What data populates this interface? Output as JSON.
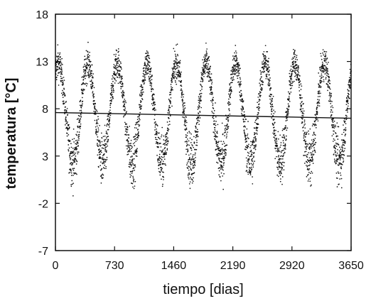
{
  "chart_data": {
    "type": "scatter",
    "title": "",
    "xlabel": "tiempo [dias]",
    "ylabel": "temperatura [°C]",
    "xlim": [
      0,
      3650
    ],
    "ylim": [
      -7,
      18
    ],
    "xticks": [
      0,
      730,
      1460,
      2190,
      2920,
      3650
    ],
    "xtick_labels": [
      "0",
      "730",
      "1460",
      "2190",
      "2920",
      "3650"
    ],
    "yticks": [
      -7,
      -2,
      3,
      8,
      13,
      18
    ],
    "ytick_labels": [
      "-7",
      "-2",
      "3",
      "8",
      "13",
      "18"
    ],
    "grid": false,
    "legend": "none",
    "point_color": "#111111",
    "series": [
      {
        "kind": "points",
        "seasonal_model": {
          "period_days": 365,
          "x_step_days": 1,
          "peak_day_in_cycle": 35,
          "mean_c": 7.6,
          "amplitude_c": 5.2,
          "scatter_c": 1.6
        }
      },
      {
        "kind": "trend_line",
        "points": [
          {
            "x": 0,
            "y": 7.6
          },
          {
            "x": 3650,
            "y": 7.0
          }
        ]
      }
    ]
  }
}
